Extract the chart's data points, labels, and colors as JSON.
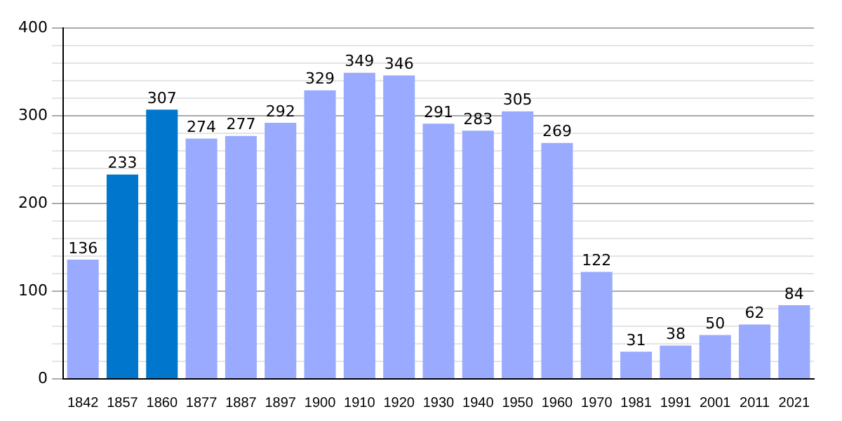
{
  "chart_data": {
    "type": "bar",
    "categories": [
      "1842",
      "1857",
      "1860",
      "1877",
      "1887",
      "1897",
      "1900",
      "1910",
      "1920",
      "1930",
      "1940",
      "1950",
      "1960",
      "1970",
      "1981",
      "1991",
      "2001",
      "2011",
      "2021"
    ],
    "values": [
      136,
      233,
      307,
      274,
      277,
      292,
      329,
      349,
      346,
      291,
      283,
      305,
      269,
      122,
      31,
      38,
      50,
      62,
      84
    ],
    "colors": [
      "#99aaff",
      "#0077cc",
      "#0077cc",
      "#99aaff",
      "#99aaff",
      "#99aaff",
      "#99aaff",
      "#99aaff",
      "#99aaff",
      "#99aaff",
      "#99aaff",
      "#99aaff",
      "#99aaff",
      "#99aaff",
      "#99aaff",
      "#99aaff",
      "#99aaff",
      "#99aaff",
      "#99aaff"
    ],
    "ylim": [
      0,
      400
    ],
    "yticks": [
      0,
      {
        "value": 20,
        "label": null
      },
      {
        "value": 40,
        "label": null
      },
      {
        "value": 60,
        "label": null
      },
      {
        "value": 80,
        "label": null
      },
      100,
      {
        "value": 120,
        "label": null
      },
      {
        "value": 140,
        "label": null
      },
      {
        "value": 160,
        "label": null
      },
      {
        "value": 180,
        "label": null
      },
      200,
      {
        "value": 220,
        "label": null
      },
      {
        "value": 240,
        "label": null
      },
      {
        "value": 260,
        "label": null
      },
      {
        "value": 280,
        "label": null
      },
      300,
      {
        "value": 320,
        "label": null
      },
      {
        "value": 340,
        "label": null
      },
      {
        "value": 360,
        "label": null
      },
      {
        "value": 380,
        "label": null
      },
      400
    ],
    "grid": true,
    "data_labels": true
  }
}
